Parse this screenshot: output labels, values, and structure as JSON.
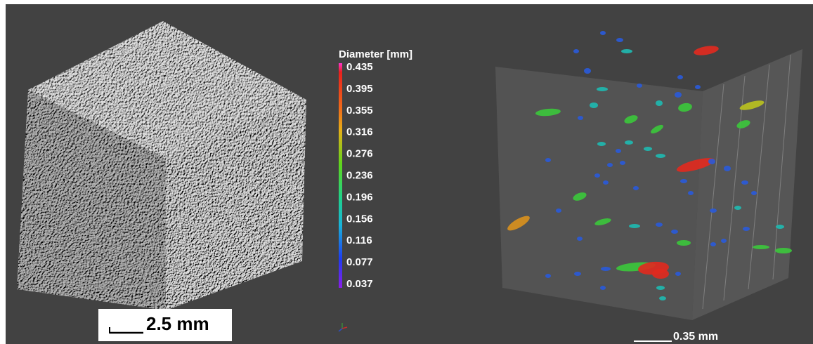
{
  "colorbar": {
    "title": "Diameter [mm]",
    "labels": [
      "0.435",
      "0.395",
      "0.355",
      "0.316",
      "0.276",
      "0.236",
      "0.196",
      "0.156",
      "0.116",
      "0.077",
      "0.037"
    ]
  },
  "left_scale": "2.5 mm",
  "right_scale": "0.35 mm"
}
